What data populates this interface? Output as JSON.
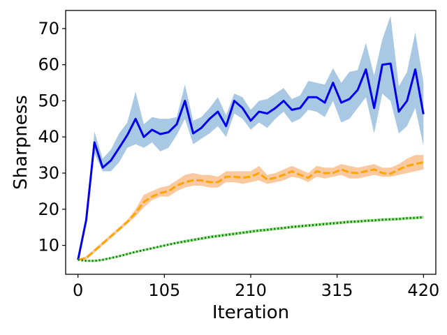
{
  "chart_data": {
    "type": "line",
    "title": "",
    "xlabel": "Iteration",
    "ylabel": "Sharpness",
    "xlim": [
      -15,
      435
    ],
    "ylim": [
      2,
      75
    ],
    "xticks": [
      0,
      105,
      210,
      315,
      420
    ],
    "xtick_labels": [
      "0",
      "105",
      "210",
      "315",
      "420"
    ],
    "yticks": [
      10,
      20,
      30,
      40,
      50,
      60,
      70
    ],
    "ytick_labels": [
      "10",
      "20",
      "30",
      "40",
      "50",
      "60",
      "70"
    ],
    "grid": false,
    "legend": null,
    "x": [
      0,
      10,
      20,
      30,
      40,
      50,
      60,
      70,
      80,
      90,
      100,
      110,
      120,
      130,
      140,
      150,
      160,
      170,
      180,
      190,
      200,
      210,
      220,
      230,
      240,
      250,
      260,
      270,
      280,
      290,
      300,
      310,
      320,
      330,
      340,
      350,
      360,
      370,
      380,
      390,
      400,
      410,
      420
    ],
    "series": [
      {
        "name": "blue",
        "color": "#0000ee",
        "band_color": "#a8c8e4",
        "style": "solid",
        "values": [
          6,
          17,
          38.5,
          31.5,
          33.5,
          37,
          40.5,
          45,
          40,
          42,
          40.8,
          41.3,
          43.5,
          50,
          41,
          42.5,
          45,
          47,
          43,
          50,
          48,
          44.5,
          47,
          46.5,
          48,
          50,
          47.5,
          48,
          51,
          51,
          49.5,
          55,
          49.5,
          50.5,
          53,
          58.7,
          48,
          60,
          60.3,
          47,
          50,
          58.7,
          46.3
        ],
        "upper": [
          6,
          17,
          41.5,
          34,
          36.5,
          41,
          44,
          52.5,
          43.5,
          45.5,
          45,
          45,
          45.5,
          54.5,
          44.5,
          45.5,
          48,
          51,
          46,
          52,
          51,
          47.5,
          50,
          50.5,
          52,
          53.5,
          50.5,
          51.5,
          55.5,
          55,
          54.5,
          59,
          55,
          58,
          58.5,
          66,
          57,
          67,
          73.5,
          54,
          58,
          69,
          55
        ],
        "lower": [
          6,
          17,
          35.5,
          30.5,
          30.5,
          33,
          37,
          38,
          37,
          38.5,
          36,
          37,
          40.5,
          45,
          38,
          39.5,
          41,
          43,
          40,
          46.5,
          45,
          42,
          44,
          42.5,
          45,
          47,
          44,
          45,
          47.5,
          47,
          45.5,
          50,
          44,
          45,
          48,
          51,
          41,
          52,
          50,
          41,
          43,
          48,
          37.5
        ]
      },
      {
        "name": "orange",
        "color": "#ffa500",
        "band_color": "#fbc9a0",
        "style": "dashed",
        "values": [
          6,
          6.5,
          8.5,
          10.5,
          12.5,
          14.5,
          16.5,
          19,
          22,
          23.5,
          24.5,
          25,
          26.5,
          27.5,
          28,
          28,
          27.5,
          27.5,
          29,
          29,
          28.7,
          29,
          30,
          28.2,
          28.7,
          29.5,
          30.5,
          29.5,
          28.7,
          30.5,
          30,
          30,
          31,
          30.2,
          30,
          30.5,
          31,
          30,
          29.8,
          31,
          32,
          32.5,
          33
        ],
        "upper": [
          6,
          7,
          9,
          11,
          13,
          15,
          17,
          20,
          24,
          25,
          26,
          26.5,
          28,
          29.5,
          30,
          29.5,
          29.5,
          29,
          30.5,
          30.5,
          30.5,
          30.5,
          32,
          29.5,
          30,
          31,
          32,
          31,
          30,
          32,
          31.5,
          31.5,
          32.5,
          32,
          31.5,
          32,
          32.5,
          31.5,
          31.5,
          32.5,
          34,
          35,
          35
        ],
        "lower": [
          6,
          6,
          8,
          10,
          12,
          14,
          16,
          18,
          20.5,
          22.5,
          23.5,
          23.5,
          25,
          26,
          26.5,
          26.5,
          26,
          26,
          27.5,
          27.5,
          27,
          27.5,
          28,
          27,
          27.5,
          28,
          29,
          28.5,
          27.5,
          29,
          28.5,
          29,
          29.5,
          28.5,
          28.5,
          29,
          29.5,
          29,
          29,
          29.5,
          30,
          30.5,
          31
        ]
      },
      {
        "name": "green",
        "color": "#008000",
        "band_color": "#a6dd95",
        "style": "dotted",
        "values": [
          6,
          5.7,
          5.7,
          6,
          6.5,
          7,
          7.6,
          8.2,
          8.7,
          9.2,
          9.7,
          10.2,
          10.7,
          11.1,
          11.5,
          11.9,
          12.3,
          12.6,
          12.9,
          13.2,
          13.5,
          13.8,
          14.1,
          14.3,
          14.6,
          14.8,
          15.1,
          15.3,
          15.5,
          15.7,
          15.9,
          16.1,
          16.3,
          16.5,
          16.6,
          16.8,
          16.9,
          17.1,
          17.2,
          17.3,
          17.5,
          17.6,
          17.8
        ],
        "upper": [
          6,
          5.9,
          6,
          6.3,
          6.8,
          7.3,
          7.9,
          8.5,
          9,
          9.5,
          10,
          10.5,
          11,
          11.5,
          11.9,
          12.3,
          12.7,
          13,
          13.3,
          13.6,
          13.9,
          14.2,
          14.5,
          14.7,
          15,
          15.2,
          15.5,
          15.7,
          15.9,
          16.1,
          16.3,
          16.5,
          16.7,
          16.9,
          17,
          17.2,
          17.3,
          17.5,
          17.6,
          17.7,
          17.9,
          18,
          18.2
        ],
        "lower": [
          6,
          5.5,
          5.4,
          5.7,
          6.2,
          6.7,
          7.3,
          7.9,
          8.4,
          8.9,
          9.4,
          9.9,
          10.4,
          10.7,
          11.1,
          11.5,
          11.9,
          12.2,
          12.5,
          12.8,
          13.1,
          13.4,
          13.7,
          13.9,
          14.2,
          14.4,
          14.7,
          14.9,
          15.1,
          15.3,
          15.5,
          15.7,
          15.9,
          16.1,
          16.2,
          16.4,
          16.5,
          16.7,
          16.8,
          16.9,
          17.1,
          17.2,
          17.4
        ]
      }
    ]
  }
}
